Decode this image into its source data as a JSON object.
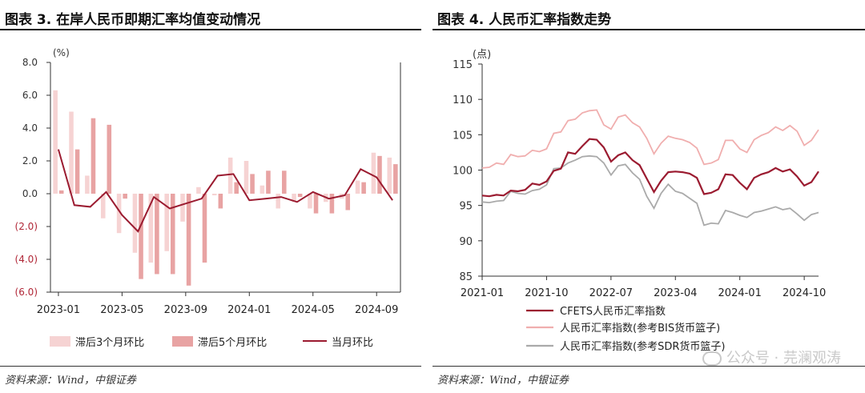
{
  "left_panel": {
    "title": "图表 3. 在岸人民币即期汇率均值变动情况",
    "source": "资料来源：Wind，中银证券"
  },
  "right_panel": {
    "title": "图表 4. 人民币汇率指数走势",
    "source": "资料来源：Wind，中银证券"
  },
  "watermark": {
    "text": "公众号 · 芫澜观涛",
    "icon": "wechat-icon"
  },
  "chart_data": [
    {
      "type": "bar",
      "unit_label": "(%)",
      "ylim": [
        -6,
        8
      ],
      "y_ticks": [
        "8.0",
        "6.0",
        "4.0",
        "2.0",
        "0.0",
        "(2.0)",
        "(4.0)",
        "(6.0)"
      ],
      "x_tick_labels": [
        "2023-01",
        "2023-05",
        "2023-09",
        "2024-01",
        "2024-05",
        "2024-09"
      ],
      "categories": [
        "2023-01",
        "2023-02",
        "2023-03",
        "2023-04",
        "2023-05",
        "2023-06",
        "2023-07",
        "2023-08",
        "2023-09",
        "2023-10",
        "2023-11",
        "2023-12",
        "2024-01",
        "2024-02",
        "2024-03",
        "2024-04",
        "2024-05",
        "2024-06",
        "2024-07",
        "2024-08",
        "2024-09",
        "2024-10"
      ],
      "series": [
        {
          "name": "滞后3个月环比",
          "kind": "bar",
          "color": "#f6d3d3",
          "values": [
            6.3,
            5.0,
            1.1,
            -1.5,
            -2.4,
            -3.6,
            -4.2,
            -3.5,
            -1.7,
            0.4,
            -0.1,
            2.2,
            2.0,
            0.5,
            -0.9,
            -0.5,
            -0.9,
            -0.5,
            -0.3,
            0.8,
            2.5,
            2.2
          ]
        },
        {
          "name": "滞后5个月环比",
          "kind": "bar",
          "color": "#e8a3a3",
          "values": [
            0.2,
            2.7,
            4.6,
            4.2,
            -0.3,
            -5.2,
            -4.9,
            -4.9,
            -5.6,
            -4.2,
            -0.9,
            0.7,
            1.2,
            1.4,
            1.4,
            -0.2,
            -1.2,
            -1.2,
            -1.0,
            0.7,
            2.3,
            1.8
          ]
        },
        {
          "name": "当月环比",
          "kind": "line",
          "color": "#9b1b30",
          "values": [
            2.7,
            -0.7,
            -0.8,
            0.1,
            -1.3,
            -2.3,
            -0.2,
            -0.9,
            -0.6,
            -0.3,
            1.1,
            1.2,
            -0.4,
            -0.3,
            -0.2,
            -0.5,
            0.1,
            -0.3,
            -0.1,
            1.5,
            1.0,
            -0.4
          ]
        }
      ]
    },
    {
      "type": "line",
      "unit_label": "(点)",
      "ylim": [
        85,
        115
      ],
      "y_ticks": [
        "115",
        "110",
        "105",
        "100",
        "95",
        "90",
        "85"
      ],
      "x_tick_labels": [
        "2021-01",
        "2021-10",
        "2022-07",
        "2023-04",
        "2024-01",
        "2024-10"
      ],
      "x_range": [
        "2021-01",
        "2024-10"
      ],
      "series": [
        {
          "name": "CFETS人民币汇率指数",
          "color": "#9b1b30",
          "values": [
            96.4,
            96.3,
            96.5,
            96.4,
            97.1,
            97.0,
            97.2,
            98.1,
            97.9,
            98.4,
            99.9,
            100.2,
            102.5,
            102.3,
            103.4,
            104.4,
            104.3,
            103.2,
            101.2,
            102.1,
            102.5,
            101.4,
            100.7,
            98.8,
            96.9,
            98.5,
            99.7,
            99.8,
            99.7,
            99.5,
            98.9,
            96.6,
            96.8,
            97.3,
            99.4,
            99.3,
            98.2,
            97.3,
            98.9,
            99.4,
            99.7,
            100.3,
            99.8,
            100.1,
            99.1,
            97.8,
            98.3,
            99.8
          ]
        },
        {
          "name": "人民币汇率指数(参考BIS货币篮子)",
          "color": "#f0aeae",
          "values": [
            100.3,
            100.4,
            101.0,
            100.8,
            102.2,
            101.9,
            102.0,
            102.8,
            102.6,
            103.0,
            105.2,
            105.4,
            107.0,
            107.2,
            108.1,
            108.4,
            108.5,
            106.4,
            105.8,
            107.5,
            107.8,
            106.7,
            106.1,
            104.5,
            102.3,
            103.8,
            104.8,
            104.5,
            104.3,
            103.9,
            103.1,
            100.8,
            101.0,
            101.5,
            104.2,
            104.2,
            103.0,
            102.5,
            104.3,
            104.9,
            105.3,
            106.1,
            105.6,
            106.3,
            105.5,
            103.5,
            104.2,
            105.7
          ]
        },
        {
          "name": "人民币汇率指数(参考SDR货币篮子)",
          "color": "#aaaaaa",
          "values": [
            95.5,
            95.4,
            95.6,
            95.7,
            97.0,
            96.7,
            96.6,
            97.1,
            97.3,
            97.9,
            100.2,
            100.3,
            101.0,
            101.4,
            101.9,
            102.0,
            101.9,
            101.0,
            99.3,
            100.6,
            100.8,
            99.6,
            98.7,
            96.3,
            94.6,
            96.7,
            98.0,
            97.0,
            96.7,
            96.0,
            95.3,
            92.2,
            92.5,
            92.4,
            94.3,
            94.0,
            93.6,
            93.3,
            94.0,
            94.2,
            94.5,
            94.8,
            94.4,
            94.6,
            93.8,
            92.9,
            93.7,
            94.0
          ]
        }
      ]
    }
  ]
}
